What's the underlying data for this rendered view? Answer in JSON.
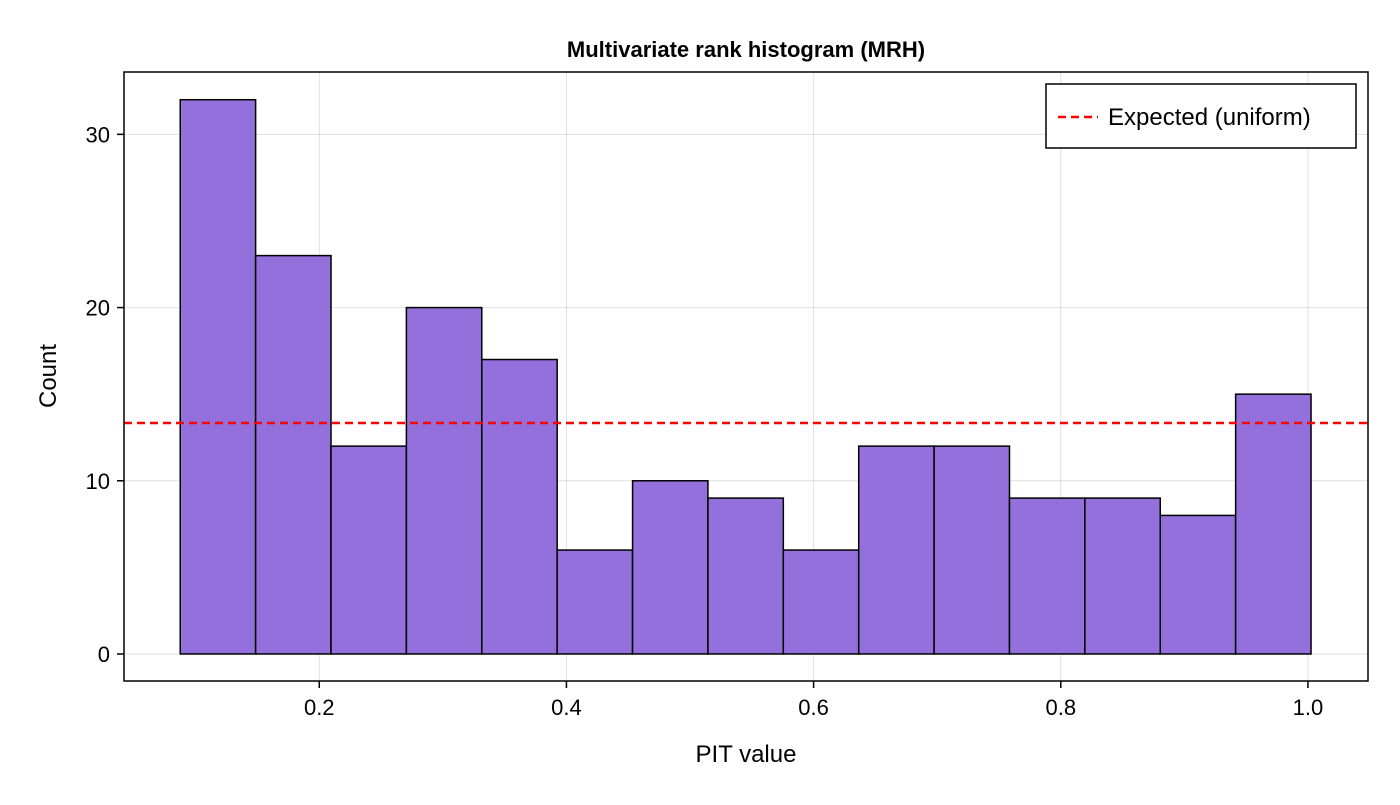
{
  "chart_data": {
    "type": "bar",
    "title": "Multivariate rank histogram (MRH)",
    "xlabel": "PIT value",
    "ylabel": "Count",
    "bin_edges": [
      0.0875,
      0.1485,
      0.2095,
      0.2705,
      0.3315,
      0.3925,
      0.4535,
      0.5145,
      0.5755,
      0.6365,
      0.6975,
      0.7585,
      0.8195,
      0.8805,
      0.9415,
      1.0025
    ],
    "values": [
      32,
      23,
      12,
      20,
      17,
      6,
      10,
      9,
      6,
      12,
      12,
      9,
      9,
      8,
      15
    ],
    "xlim": [
      0.042,
      1.0486
    ],
    "ylim": [
      -1.56,
      33.6
    ],
    "xticks": [
      0.2,
      0.4,
      0.6,
      0.8,
      1.0
    ],
    "xtick_labels": [
      "0.2",
      "0.4",
      "0.6",
      "0.8",
      "1.0"
    ],
    "yticks": [
      0,
      10,
      20,
      30
    ],
    "ytick_labels": [
      "0",
      "10",
      "20",
      "30"
    ],
    "grid": true,
    "reference_line": {
      "name": "Expected (uniform)",
      "value": 13.333,
      "color": "#ff0000",
      "style": "dashed"
    },
    "legend": {
      "position": "top-right",
      "entries": [
        "Expected (uniform)"
      ]
    },
    "colors": {
      "bar_fill": "#9370db",
      "bar_edge": "#000000"
    }
  }
}
